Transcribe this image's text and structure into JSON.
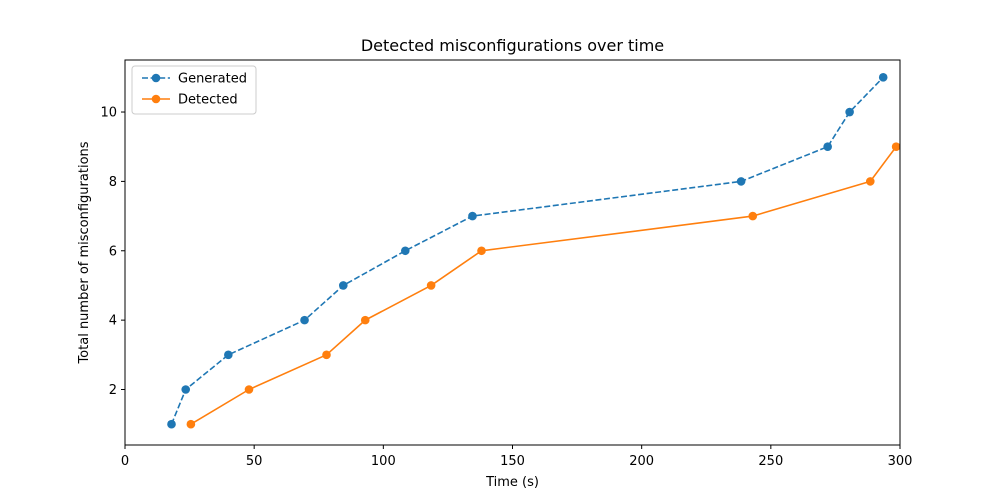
{
  "chart_data": {
    "type": "line",
    "title": "Detected misconfigurations over time",
    "xlabel": "Time (s)",
    "ylabel": "Total number of misconfigurations",
    "xlim": [
      0,
      300
    ],
    "ylim": [
      0.4,
      11.5
    ],
    "xticks": [
      0,
      50,
      100,
      150,
      200,
      250,
      300
    ],
    "yticks": [
      2,
      4,
      6,
      8,
      10
    ],
    "grid": false,
    "legend_position": "upper left",
    "series": [
      {
        "name": "Generated",
        "color": "#1f77b4",
        "line_style": "dashed",
        "marker": "circle",
        "x": [
          18,
          23.5,
          40,
          69.5,
          84.5,
          108.5,
          134.5,
          238.5,
          272,
          280.5,
          293.5
        ],
        "y": [
          1,
          2,
          3,
          4,
          5,
          6,
          7,
          8,
          9,
          10,
          11
        ]
      },
      {
        "name": "Detected",
        "color": "#ff7f0e",
        "line_style": "solid",
        "marker": "circle",
        "x": [
          25.5,
          48,
          78,
          93,
          118.5,
          138,
          243,
          288.5,
          298.5
        ],
        "y": [
          1,
          2,
          3,
          4,
          5,
          6,
          7,
          8,
          9
        ]
      }
    ]
  }
}
